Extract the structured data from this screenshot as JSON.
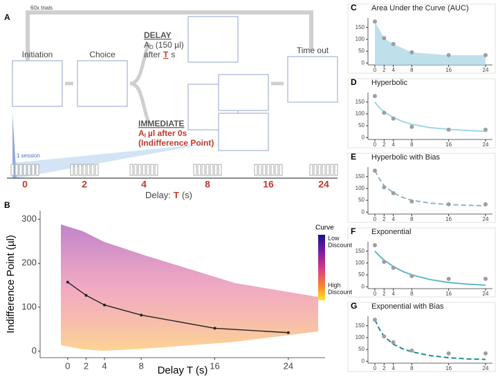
{
  "panel_a": {
    "panel": "A",
    "loop_label": "60x trials",
    "stages": [
      "Initiation",
      "Choice",
      "Time out"
    ],
    "delay_title": "DELAY",
    "delay_amount": [
      "A",
      "D",
      "(150 µl)"
    ],
    "delay_after": [
      "after",
      "T",
      "s"
    ],
    "immediate_title": "IMMEDIATE",
    "immediate_amount": [
      "A",
      "I",
      "µl after 0s"
    ],
    "indifference": "(Indifference Point)",
    "session": "1 session",
    "delays": [
      "0",
      "2",
      "4",
      "8",
      "16",
      "24"
    ],
    "axis_label": [
      "Delay:",
      "T",
      "(s)"
    ]
  },
  "chart_data": [
    {
      "panel": "B",
      "type": "line",
      "xlabel": "Delay T (s)",
      "ylabel": "Indifference Point (µl)",
      "x": [
        0,
        2,
        4,
        8,
        16,
        24
      ],
      "series": [
        {
          "values": [
            157,
            127,
            105,
            82,
            52,
            42
          ],
          "color": "#222222"
        }
      ],
      "xlim": [
        -3,
        28
      ],
      "ylim": [
        -15,
        320
      ],
      "xticks": [
        0,
        2,
        4,
        8,
        16,
        24
      ],
      "yticks": [
        0,
        100,
        200,
        300
      ],
      "legend": {
        "title": "Curve",
        "labels": [
          "Low Discount",
          "High Discount"
        ],
        "colors": [
          "#1a0f8c",
          "#8b1fa0",
          "#e0427a",
          "#f98c2a",
          "#fde725"
        ]
      }
    },
    {
      "panel": "C",
      "type": "area",
      "title": "Area Under the Curve (AUC)",
      "x": [
        0,
        2,
        4,
        8,
        16,
        24
      ],
      "values": [
        175,
        105,
        80,
        45,
        33,
        33
      ],
      "point_color": "#9e9e9e",
      "color": "#add8e6",
      "xlim": [
        -1.5,
        25.5
      ],
      "ylim": [
        -8,
        190
      ],
      "xticks": [
        0,
        2,
        4,
        8,
        16,
        24
      ],
      "yticks": [
        0,
        50,
        100,
        150
      ]
    },
    {
      "panel": "D",
      "type": "line",
      "title": "Hyperbolic",
      "x": [
        0,
        2,
        4,
        8,
        16,
        24
      ],
      "values": [
        175,
        105,
        80,
        45,
        33,
        33
      ],
      "point_color": "#9e9e9e",
      "fit": {
        "x": [
          0,
          1,
          2,
          4,
          6,
          8,
          12,
          16,
          20,
          24
        ],
        "values": [
          150,
          125,
          108,
          85,
          68,
          56,
          42,
          35,
          30,
          27
        ]
      },
      "color": "#9fd6e6",
      "dashed": false,
      "xlim": [
        -1.5,
        25.5
      ],
      "ylim": [
        -8,
        190
      ],
      "xticks": [
        0,
        2,
        4,
        8,
        16,
        24
      ],
      "yticks": [
        0,
        50,
        100,
        150
      ]
    },
    {
      "panel": "E",
      "type": "line",
      "title": "Hyperbolic with Bias",
      "x": [
        0,
        2,
        4,
        8,
        16,
        24
      ],
      "values": [
        175,
        105,
        80,
        45,
        33,
        33
      ],
      "point_color": "#9e9e9e",
      "fit": {
        "x": [
          0,
          1,
          2,
          4,
          6,
          8,
          12,
          16,
          20,
          24
        ],
        "values": [
          175,
          140,
          112,
          82,
          62,
          50,
          38,
          32,
          29,
          27
        ]
      },
      "color": "#8fb3c9",
      "dashed": true,
      "xlim": [
        -1.5,
        25.5
      ],
      "ylim": [
        -8,
        190
      ],
      "xticks": [
        0,
        2,
        4,
        8,
        16,
        24
      ],
      "yticks": [
        0,
        50,
        100,
        150
      ]
    },
    {
      "panel": "F",
      "type": "line",
      "title": "Exponential",
      "x": [
        0,
        2,
        4,
        8,
        16,
        24
      ],
      "values": [
        175,
        105,
        80,
        45,
        33,
        33
      ],
      "point_color": "#9e9e9e",
      "fit": {
        "x": [
          0,
          1,
          2,
          4,
          6,
          8,
          12,
          16,
          20,
          24
        ],
        "values": [
          150,
          130,
          112,
          85,
          65,
          50,
          30,
          18,
          11,
          7
        ]
      },
      "color": "#5fb8c4",
      "dashed": false,
      "xlim": [
        -1.5,
        25.5
      ],
      "ylim": [
        -8,
        190
      ],
      "xticks": [
        0,
        2,
        4,
        8,
        16,
        24
      ],
      "yticks": [
        0,
        50,
        100,
        150
      ]
    },
    {
      "panel": "G",
      "type": "line",
      "title": "Exponential with Bias",
      "x": [
        0,
        2,
        4,
        8,
        16,
        24
      ],
      "values": [
        175,
        105,
        80,
        45,
        33,
        33
      ],
      "point_color": "#9e9e9e",
      "fit": {
        "x": [
          0,
          1,
          2,
          4,
          6,
          8,
          12,
          16,
          20,
          24
        ],
        "values": [
          175,
          135,
          105,
          72,
          53,
          40,
          24,
          15,
          10,
          8
        ]
      },
      "color": "#1a8c8c",
      "dashed": true,
      "xlim": [
        -1.5,
        25.5
      ],
      "ylim": [
        -8,
        190
      ],
      "xticks": [
        0,
        2,
        4,
        8,
        16,
        24
      ],
      "yticks": [
        0,
        50,
        100,
        150
      ]
    }
  ]
}
